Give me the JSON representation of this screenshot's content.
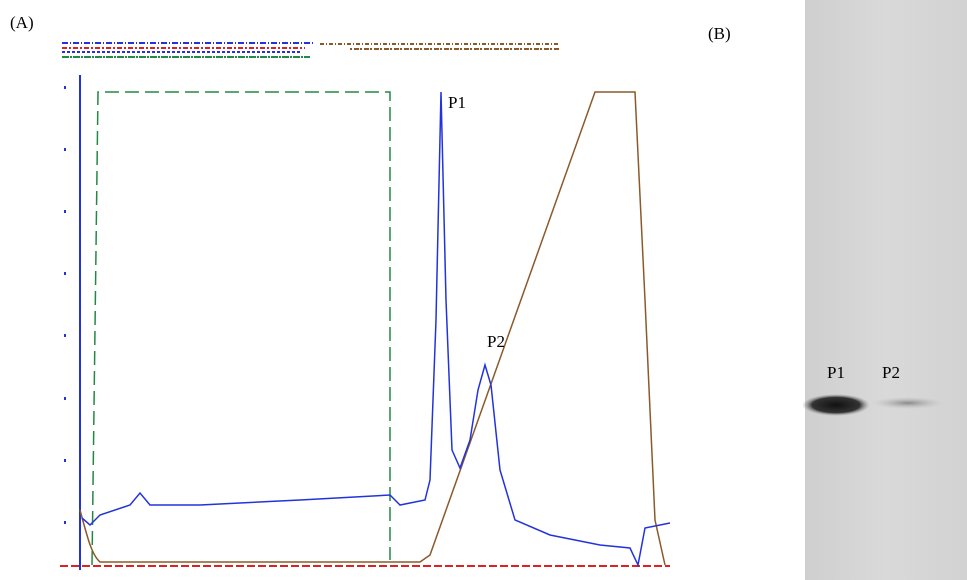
{
  "panel_a": {
    "label": "(A)",
    "peaks": [
      "P1",
      "P2"
    ]
  },
  "panel_b": {
    "label": "(B)",
    "lanes": [
      "P1",
      "P2"
    ]
  }
}
